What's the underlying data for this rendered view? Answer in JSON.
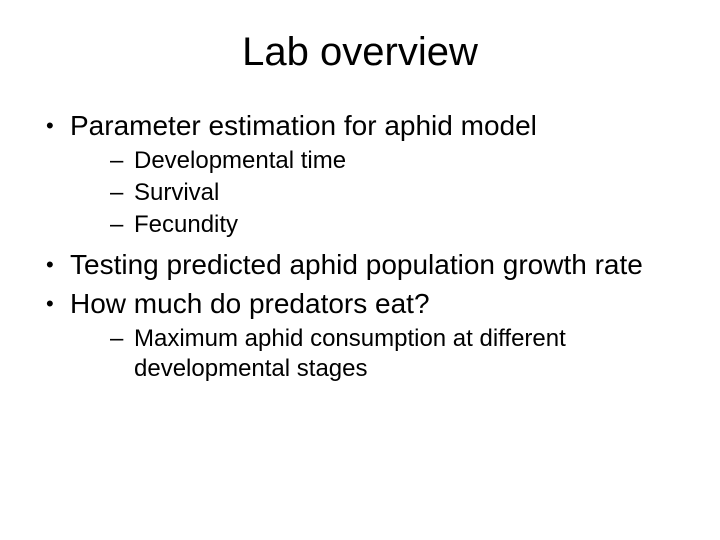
{
  "slide": {
    "title": "Lab overview",
    "bullets": [
      {
        "text": "Parameter estimation for aphid model",
        "sub": [
          {
            "text": "Developmental time"
          },
          {
            "text": "Survival"
          },
          {
            "text": "Fecundity"
          }
        ]
      },
      {
        "text": "Testing predicted aphid population growth rate",
        "sub": []
      },
      {
        "text": "How much do predators eat?",
        "sub": [
          {
            "text": "Maximum aphid consumption at different developmental stages"
          }
        ]
      }
    ]
  },
  "style": {
    "background_color": "#ffffff",
    "text_color": "#000000",
    "title_fontsize": 40,
    "level1_fontsize": 28,
    "level2_fontsize": 24,
    "font_family": "Arial"
  }
}
